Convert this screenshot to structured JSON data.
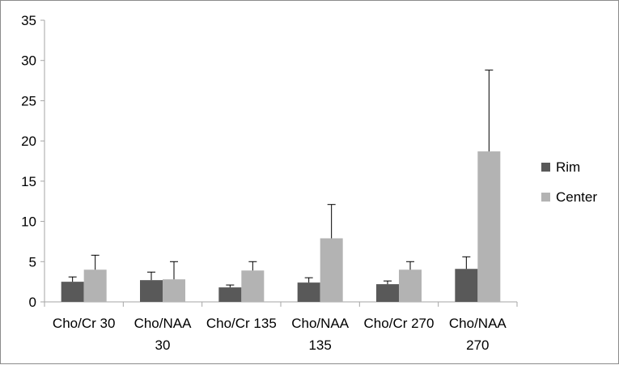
{
  "chart_data": {
    "type": "bar",
    "categories": [
      [
        "Cho/Cr 30"
      ],
      [
        "Cho/NAA",
        "30"
      ],
      [
        "Cho/Cr 135"
      ],
      [
        "Cho/NAA",
        "135"
      ],
      [
        "Cho/Cr 270"
      ],
      [
        "Cho/NAA",
        "270"
      ]
    ],
    "series": [
      {
        "name": "Rim",
        "color": "#595959",
        "values": [
          2.5,
          2.7,
          1.8,
          2.4,
          2.2,
          4.1
        ],
        "error_plus": [
          0.6,
          1.0,
          0.3,
          0.6,
          0.4,
          1.5
        ]
      },
      {
        "name": "Center",
        "color": "#b3b3b3",
        "values": [
          4.0,
          2.8,
          3.9,
          7.9,
          4.0,
          18.7
        ],
        "error_plus": [
          1.8,
          2.2,
          1.1,
          4.2,
          1.0,
          10.1
        ]
      }
    ],
    "ylim": [
      0,
      35
    ],
    "yticks": [
      0,
      5,
      10,
      15,
      20,
      25,
      30,
      35
    ],
    "title": "",
    "xlabel": "",
    "ylabel": "",
    "grid": false,
    "legend_position": "right",
    "error_bar_color": "#000000",
    "axis_color": "#a6a6a6"
  }
}
